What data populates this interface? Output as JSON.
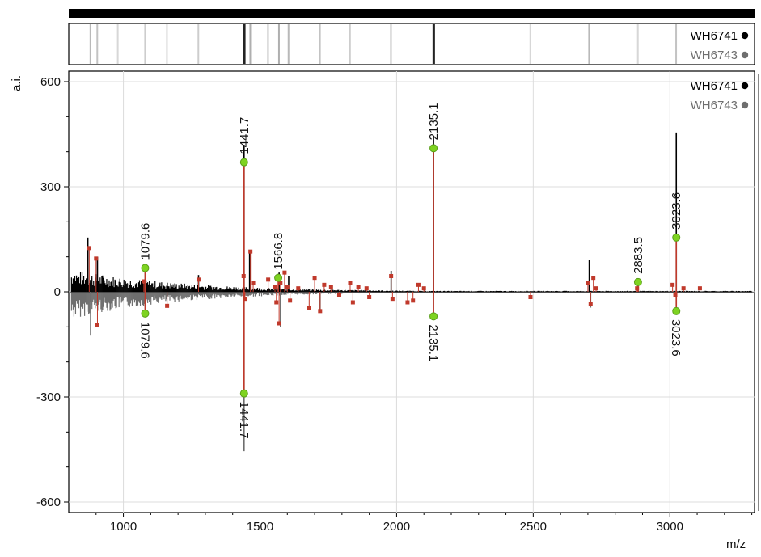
{
  "chart_data": {
    "type": "line",
    "ylabel": "a.i.",
    "xlabel": "m/z",
    "xlim": [
      800,
      3310
    ],
    "ylim": [
      -630,
      630
    ],
    "x_ticks": [
      1000,
      1500,
      2000,
      2500,
      3000
    ],
    "y_ticks": [
      600,
      300,
      0,
      -300,
      -600
    ],
    "grid": true,
    "legend_position": "top-right",
    "legend": [
      {
        "name": "WH6741",
        "color": "#000000"
      },
      {
        "name": "WH6743",
        "color": "#6e6e6e"
      }
    ],
    "colors": {
      "positive": "#000000",
      "negative": "#6e6e6e",
      "match": "#c0392b",
      "label_point": "#7ed321"
    },
    "series": [
      {
        "name": "WH6741",
        "direction": "up",
        "peaks": [
          {
            "x": 870,
            "y": 155
          },
          {
            "x": 905,
            "y": 100
          },
          {
            "x": 1080,
            "y": 68
          },
          {
            "x": 1275,
            "y": 48
          },
          {
            "x": 1441.7,
            "y": 420
          },
          {
            "x": 1462,
            "y": 120
          },
          {
            "x": 1570,
            "y": 55
          },
          {
            "x": 1605,
            "y": 45
          },
          {
            "x": 1980,
            "y": 60
          },
          {
            "x": 2135.1,
            "y": 445
          },
          {
            "x": 2705,
            "y": 90
          },
          {
            "x": 2883.5,
            "y": 30
          },
          {
            "x": 3023.6,
            "y": 455
          }
        ]
      },
      {
        "name": "WH6743",
        "direction": "down",
        "peaks": [
          {
            "x": 880,
            "y": -125
          },
          {
            "x": 1080,
            "y": -70
          },
          {
            "x": 1441.7,
            "y": -455
          },
          {
            "x": 1575,
            "y": -100
          },
          {
            "x": 1720,
            "y": -60
          },
          {
            "x": 2135.1,
            "y": -80
          },
          {
            "x": 2710,
            "y": -45
          },
          {
            "x": 3023.6,
            "y": -65
          }
        ]
      }
    ],
    "labeled_peaks": [
      {
        "label": "1079.6",
        "x": 1079.6,
        "y": 68,
        "side": "up"
      },
      {
        "label": "1441.7",
        "x": 1441.7,
        "y": 370,
        "side": "up"
      },
      {
        "label": "1566.8",
        "x": 1566.8,
        "y": 40,
        "side": "up"
      },
      {
        "label": "2135.1",
        "x": 2135.1,
        "y": 410,
        "side": "up"
      },
      {
        "label": "2883.5",
        "x": 2883.5,
        "y": 28,
        "side": "up"
      },
      {
        "label": "3023.6",
        "x": 3023.6,
        "y": 155,
        "side": "up"
      },
      {
        "label": "1079.6",
        "x": 1079.6,
        "y": -62,
        "side": "down"
      },
      {
        "label": "1441.7",
        "x": 1441.7,
        "y": -290,
        "side": "down"
      },
      {
        "label": "2135.1",
        "x": 2135.1,
        "y": -70,
        "side": "down"
      },
      {
        "label": "3023.6",
        "x": 3023.6,
        "y": -55,
        "side": "down"
      }
    ],
    "matched_markers": [
      {
        "x": 875,
        "y": 125
      },
      {
        "x": 900,
        "y": 95
      },
      {
        "x": 905,
        "y": -95
      },
      {
        "x": 1075,
        "y": 30
      },
      {
        "x": 1160,
        "y": -40
      },
      {
        "x": 1275,
        "y": 35
      },
      {
        "x": 1440,
        "y": 45
      },
      {
        "x": 1445,
        "y": -20
      },
      {
        "x": 1465,
        "y": 115
      },
      {
        "x": 1475,
        "y": 25
      },
      {
        "x": 1530,
        "y": 35
      },
      {
        "x": 1555,
        "y": 15
      },
      {
        "x": 1560,
        "y": -30
      },
      {
        "x": 1570,
        "y": -90
      },
      {
        "x": 1575,
        "y": 25
      },
      {
        "x": 1590,
        "y": 55
      },
      {
        "x": 1600,
        "y": 15
      },
      {
        "x": 1610,
        "y": -25
      },
      {
        "x": 1640,
        "y": 10
      },
      {
        "x": 1680,
        "y": -45
      },
      {
        "x": 1700,
        "y": 40
      },
      {
        "x": 1720,
        "y": -55
      },
      {
        "x": 1735,
        "y": 20
      },
      {
        "x": 1760,
        "y": 15
      },
      {
        "x": 1790,
        "y": -10
      },
      {
        "x": 1830,
        "y": 25
      },
      {
        "x": 1840,
        "y": -30
      },
      {
        "x": 1860,
        "y": 15
      },
      {
        "x": 1890,
        "y": 10
      },
      {
        "x": 1900,
        "y": -15
      },
      {
        "x": 1980,
        "y": 45
      },
      {
        "x": 1985,
        "y": -20
      },
      {
        "x": 2040,
        "y": -30
      },
      {
        "x": 2060,
        "y": -25
      },
      {
        "x": 2080,
        "y": 20
      },
      {
        "x": 2100,
        "y": 10
      },
      {
        "x": 2490,
        "y": -15
      },
      {
        "x": 2700,
        "y": 25
      },
      {
        "x": 2710,
        "y": -35
      },
      {
        "x": 2720,
        "y": 40
      },
      {
        "x": 2730,
        "y": 10
      },
      {
        "x": 2880,
        "y": 10
      },
      {
        "x": 3010,
        "y": 20
      },
      {
        "x": 3020,
        "y": -10
      },
      {
        "x": 3050,
        "y": 10
      },
      {
        "x": 3110,
        "y": 10
      }
    ],
    "heatmap_rows": [
      {
        "name": "WH6741"
      },
      {
        "name": "WH6743"
      }
    ],
    "heatmap_bands": [
      {
        "x": 880,
        "intensity": 0.25
      },
      {
        "x": 905,
        "intensity": 0.2
      },
      {
        "x": 980,
        "intensity": 0.1
      },
      {
        "x": 1080,
        "intensity": 0.15
      },
      {
        "x": 1160,
        "intensity": 0.1
      },
      {
        "x": 1275,
        "intensity": 0.15
      },
      {
        "x": 1441.7,
        "intensity": 1.0
      },
      {
        "x": 1465,
        "intensity": 0.3
      },
      {
        "x": 1530,
        "intensity": 0.2
      },
      {
        "x": 1570,
        "intensity": 0.3
      },
      {
        "x": 1605,
        "intensity": 0.25
      },
      {
        "x": 1720,
        "intensity": 0.2
      },
      {
        "x": 1830,
        "intensity": 0.15
      },
      {
        "x": 1980,
        "intensity": 0.2
      },
      {
        "x": 2135.1,
        "intensity": 1.0
      },
      {
        "x": 2490,
        "intensity": 0.1
      },
      {
        "x": 2705,
        "intensity": 0.25
      },
      {
        "x": 2883.5,
        "intensity": 0.1
      },
      {
        "x": 3023.6,
        "intensity": 0.2
      }
    ]
  }
}
